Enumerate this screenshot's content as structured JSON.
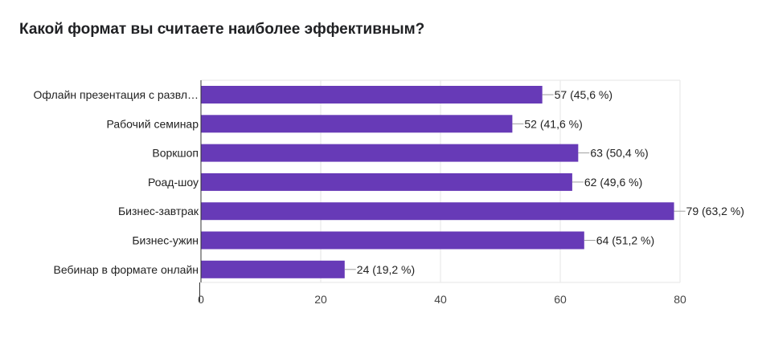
{
  "title": "Какой формат вы считаете наиболее эффективным?",
  "chart_data": {
    "type": "bar",
    "orientation": "horizontal",
    "title": "Какой формат вы считаете наиболее эффективным?",
    "categories": [
      "Офлайн презентация с развл…",
      "Рабочий семинар",
      "Воркшоп",
      "Роад-шоу",
      "Бизнес-завтрак",
      "Бизнес-ужин",
      "Вебинар в формате онлайн"
    ],
    "values": [
      57,
      52,
      63,
      62,
      79,
      64,
      24
    ],
    "value_labels": [
      "57 (45,6 %)",
      "52 (41,6 %)",
      "63 (50,4 %)",
      "62 (49,6 %)",
      "79 (63,2 %)",
      "64 (51,2 %)",
      "24 (19,2 %)"
    ],
    "xlim": [
      0,
      80
    ],
    "xticks": [
      0,
      20,
      40,
      60,
      80
    ],
    "xtick_labels": [
      "0",
      "20",
      "40",
      "60",
      "80"
    ],
    "grid": true,
    "bar_color": "#673ab7"
  }
}
